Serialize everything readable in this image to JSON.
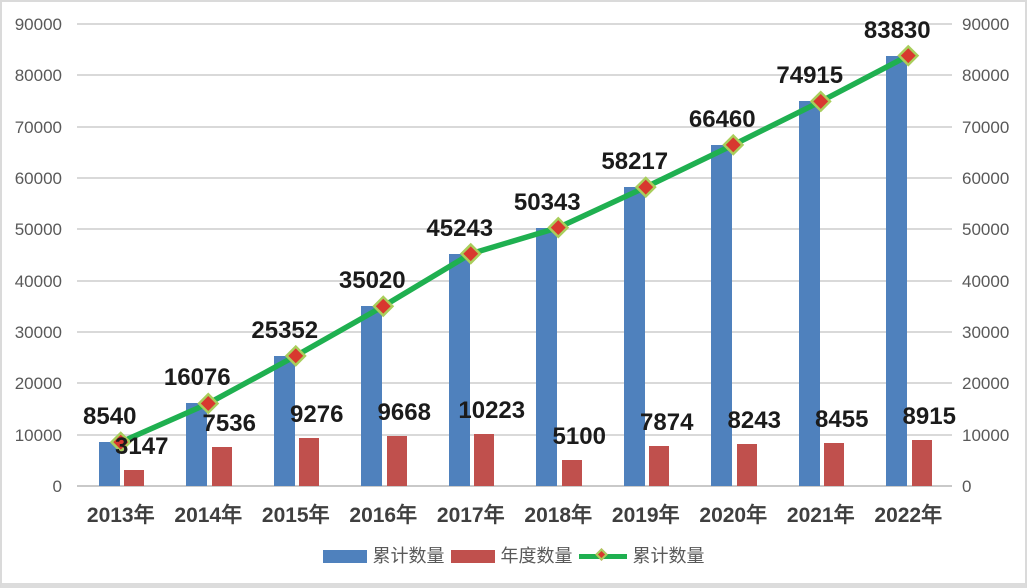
{
  "chart_data": {
    "type": "bar",
    "subtype": "combo-bar-line",
    "title": "",
    "xlabel": "",
    "ylabel": "",
    "grid": true,
    "legend_position": "bottom",
    "categories": [
      "2013年",
      "2014年",
      "2015年",
      "2016年",
      "2017年",
      "2018年",
      "2019年",
      "2020年",
      "2021年",
      "2022年"
    ],
    "series": [
      {
        "name": "累计数量",
        "type": "bar",
        "color": "#4F81BD",
        "values": [
          8540,
          16076,
          25352,
          35020,
          45243,
          50343,
          58217,
          66460,
          74915,
          83830
        ]
      },
      {
        "name": "年度数量",
        "type": "bar",
        "color": "#C0504D",
        "values": [
          3147,
          7536,
          9276,
          9668,
          10223,
          5100,
          7874,
          8243,
          8455,
          8915
        ],
        "data_labels": [
          "3147",
          "7536",
          "9276",
          "9668",
          "10223",
          "5100",
          "7874",
          "8243",
          "8455",
          "8915"
        ]
      },
      {
        "name": "累计数量",
        "type": "line",
        "color": "#1FB050",
        "marker": "diamond",
        "marker_fill": "#D8382F",
        "marker_border": "#A9CE5B",
        "values": [
          8540,
          16076,
          25352,
          35020,
          45243,
          50343,
          58217,
          66460,
          74915,
          83830
        ],
        "data_labels": [
          "8540",
          "16076",
          "25352",
          "35020",
          "45243",
          "50343",
          "58217",
          "66460",
          "74915",
          "83830"
        ]
      }
    ],
    "y_axis_left": {
      "min": 0,
      "max": 90000,
      "step": 10000,
      "tick_labels": [
        "0",
        "10000",
        "20000",
        "30000",
        "40000",
        "50000",
        "60000",
        "70000",
        "80000",
        "90000"
      ]
    },
    "y_axis_right": {
      "min": 0,
      "max": 90000,
      "step": 10000,
      "tick_labels": [
        "0",
        "10000",
        "20000",
        "30000",
        "40000",
        "50000",
        "60000",
        "70000",
        "80000",
        "90000"
      ]
    },
    "legend": [
      {
        "label": "累计数量",
        "swatch": "bar",
        "color": "#4F81BD"
      },
      {
        "label": "年度数量",
        "swatch": "bar",
        "color": "#C0504D"
      },
      {
        "label": "累计数量",
        "swatch": "line-diamond",
        "color": "#1FB050",
        "marker_fill": "#D8382F",
        "marker_border": "#A9CE5B"
      }
    ],
    "style_colors": {
      "gridline": "#D9D9D9",
      "zero_line": "#C9C9C9",
      "axis_tick_text": "#595959",
      "category_text": "#3F3F3F",
      "data_label_text": "#1B1B1B",
      "chart_border": "#DADADA"
    }
  }
}
